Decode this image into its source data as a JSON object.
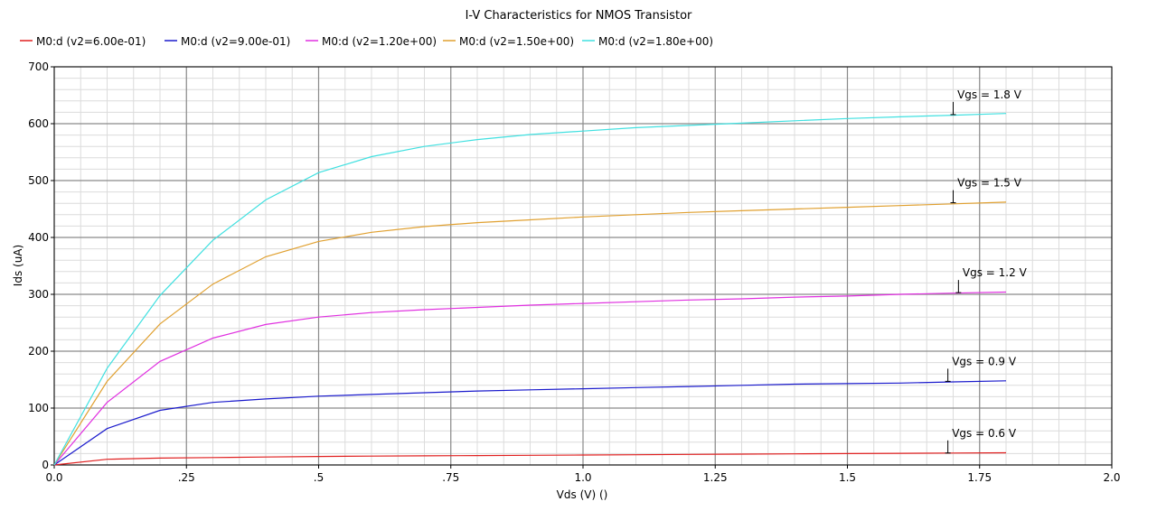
{
  "chart_data": {
    "type": "line",
    "title": "I-V Characteristics for NMOS Transistor",
    "xlabel": "Vds (V) ()",
    "ylabel": "Ids (uA)",
    "xlim": [
      0,
      2.0
    ],
    "ylim": [
      0,
      700
    ],
    "grid": true,
    "legend_position": "top-left",
    "x_ticks": [
      {
        "value": 0,
        "label": "0.0"
      },
      {
        "value": 0.25,
        "label": ".25"
      },
      {
        "value": 0.5,
        "label": ".5"
      },
      {
        "value": 0.75,
        "label": ".75"
      },
      {
        "value": 1.0,
        "label": "1.0"
      },
      {
        "value": 1.25,
        "label": "1.25"
      },
      {
        "value": 1.5,
        "label": "1.5"
      },
      {
        "value": 1.75,
        "label": "1.75"
      },
      {
        "value": 2.0,
        "label": "2.0"
      }
    ],
    "y_ticks": [
      {
        "value": 0,
        "label": "0"
      },
      {
        "value": 100,
        "label": "100"
      },
      {
        "value": 200,
        "label": "200"
      },
      {
        "value": 300,
        "label": "300"
      },
      {
        "value": 400,
        "label": "400"
      },
      {
        "value": 500,
        "label": "500"
      },
      {
        "value": 600,
        "label": "600"
      },
      {
        "value": 700,
        "label": "700"
      }
    ],
    "x": [
      0,
      0.1,
      0.2,
      0.3,
      0.4,
      0.5,
      0.6,
      0.7,
      0.8,
      0.9,
      1.0,
      1.1,
      1.2,
      1.3,
      1.4,
      1.5,
      1.6,
      1.7,
      1.8
    ],
    "series": [
      {
        "name": "M0:d (v2=6.00e-01)",
        "color": "#e02020",
        "values": [
          0,
          10,
          12,
          13,
          14,
          15,
          15.5,
          16,
          16.5,
          17,
          17.5,
          18,
          18.5,
          19,
          19.5,
          20,
          20.5,
          21,
          21.5
        ]
      },
      {
        "name": "M0:d (v2=9.00e-01)",
        "color": "#1a1acc",
        "values": [
          0,
          64,
          96,
          110,
          116,
          121,
          124,
          127,
          130,
          132,
          134,
          136,
          138,
          140,
          142,
          143,
          144,
          146,
          148
        ]
      },
      {
        "name": "M0:d (v2=1.20e+00)",
        "color": "#e030e0",
        "values": [
          0,
          110,
          182,
          223,
          247,
          260,
          268,
          273,
          277,
          281,
          284,
          287,
          290,
          292,
          295,
          297,
          300,
          302,
          304
        ]
      },
      {
        "name": "M0:d (v2=1.50e+00)",
        "color": "#e0a030",
        "values": [
          0,
          147,
          248,
          318,
          366,
          393,
          409,
          419,
          426,
          431,
          436,
          440,
          444,
          447,
          450,
          453,
          456,
          459,
          462
        ]
      },
      {
        "name": "M0:d (v2=1.80e+00)",
        "color": "#40e0e0",
        "values": [
          0,
          170,
          298,
          395,
          466,
          514,
          542,
          560,
          572,
          581,
          587,
          593,
          597,
          601,
          605,
          609,
          612,
          615,
          618
        ]
      }
    ],
    "annotations": [
      {
        "text": "Vgs = 1.8 V",
        "x": 1.7,
        "y": 616
      },
      {
        "text": "Vgs = 1.5 V",
        "x": 1.7,
        "y": 461
      },
      {
        "text": "Vgs = 1.2 V",
        "x": 1.71,
        "y": 303
      },
      {
        "text": "Vgs = 0.9 V",
        "x": 1.69,
        "y": 147
      },
      {
        "text": "Vgs = 0.6 V",
        "x": 1.69,
        "y": 21
      }
    ]
  }
}
